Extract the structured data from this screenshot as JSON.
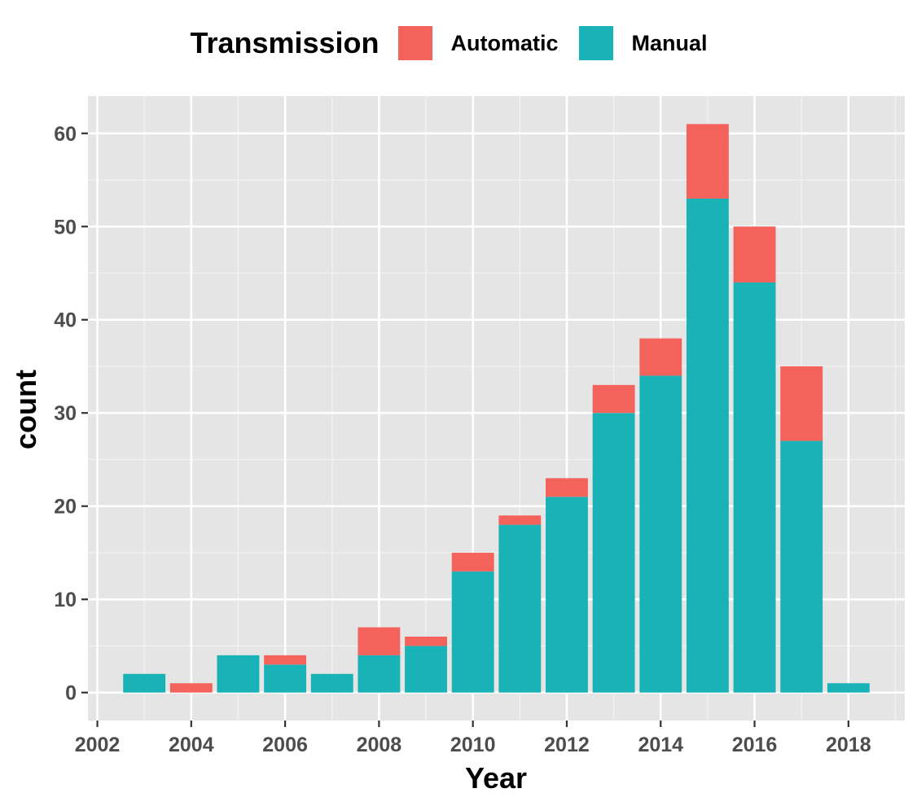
{
  "chart_data": {
    "type": "bar",
    "stacked": true,
    "xlabel": "Year",
    "ylabel": "count",
    "legend_title": "Transmission",
    "legend_position": "top",
    "grid": true,
    "xlim": [
      2001.8,
      2019.2
    ],
    "ylim": [
      -3,
      64
    ],
    "x_ticks": [
      2002,
      2004,
      2006,
      2008,
      2010,
      2012,
      2014,
      2016,
      2018
    ],
    "y_ticks": [
      0,
      10,
      20,
      30,
      40,
      50,
      60
    ],
    "x": [
      2003,
      2004,
      2005,
      2006,
      2007,
      2008,
      2009,
      2010,
      2011,
      2012,
      2013,
      2014,
      2015,
      2016,
      2017,
      2018
    ],
    "series": [
      {
        "name": "Manual",
        "color": "#19B3B7",
        "values": [
          2,
          0,
          4,
          3,
          2,
          4,
          5,
          13,
          18,
          21,
          30,
          34,
          53,
          44,
          27,
          1
        ]
      },
      {
        "name": "Automatic",
        "color": "#F4625C",
        "values": [
          0,
          1,
          0,
          1,
          0,
          3,
          1,
          2,
          1,
          2,
          3,
          4,
          8,
          6,
          8,
          0
        ]
      }
    ],
    "legend_order": [
      "Automatic",
      "Manual"
    ]
  }
}
